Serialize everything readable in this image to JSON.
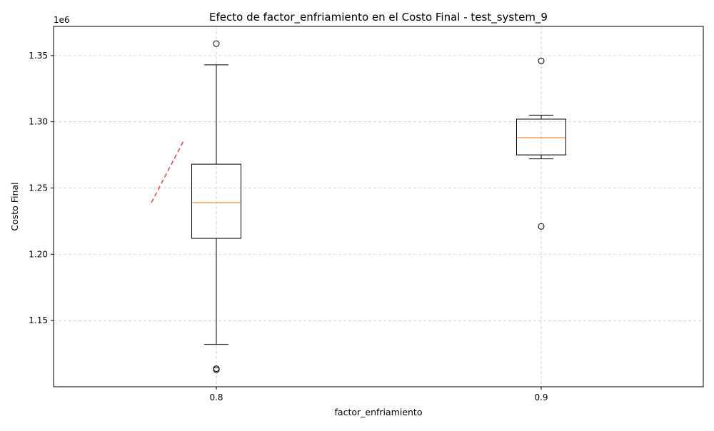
{
  "chart_data": {
    "type": "boxplot",
    "title": "Efecto de factor_enfriamiento en el Costo Final - test_system_9",
    "xlabel": "factor_enfriamiento",
    "ylabel": "Costo Final",
    "y_offset_label": "1e6",
    "categories": [
      "0.8",
      "0.9"
    ],
    "ylim": [
      1.1,
      1.372
    ],
    "yticks": [
      1.15,
      1.2,
      1.25,
      1.3,
      1.35
    ],
    "ytick_labels": [
      "1.15",
      "1.20",
      "1.25",
      "1.30",
      "1.35"
    ],
    "grid": true,
    "boxes": [
      {
        "category": "0.8",
        "whisker_low": 1.132,
        "q1": 1.212,
        "median": 1.239,
        "q3": 1.268,
        "whisker_high": 1.343,
        "outliers": [
          1.359,
          1.1137,
          1.1128
        ]
      },
      {
        "category": "0.9",
        "whisker_low": 1.272,
        "q1": 1.275,
        "median": 1.288,
        "q3": 1.302,
        "whisker_high": 1.305,
        "outliers": [
          1.346,
          1.221
        ]
      }
    ],
    "trend_line": {
      "x": [
        -0.2,
        -0.1
      ],
      "y": [
        1.239,
        1.286
      ],
      "color": "#e8423c",
      "style": "dashed"
    },
    "colors": {
      "box": "#000000",
      "median": "#f5892b",
      "grid": "#c8c8c8"
    }
  }
}
